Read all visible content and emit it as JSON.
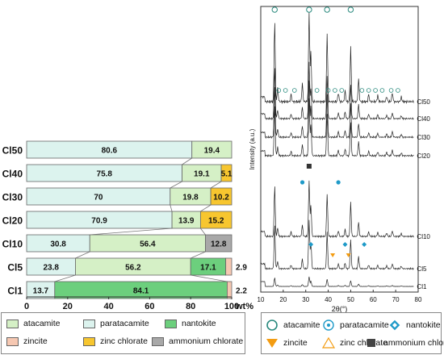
{
  "colors": {
    "atacamite": "#d5f0c6",
    "paratacamite": "#dcf3ee",
    "nantokite": "#6ccf7d",
    "zincite": "#f6c8b2",
    "zinc_chlorate": "#f7c62f",
    "ammonium_chlorate": "#a8a8a8",
    "marker_blue": "#1f9ac8",
    "marker_teal": "#2a8a7e",
    "marker_orange": "#f39c12"
  },
  "chart_data": [
    {
      "type": "bar",
      "orientation": "horizontal",
      "stacked": true,
      "categories": [
        "Cl50",
        "Cl40",
        "Cl30",
        "Cl20",
        "Cl10",
        "Cl5",
        "Cl1"
      ],
      "series": [
        {
          "name": "paratacamite",
          "values": [
            80.6,
            75.8,
            70,
            70.9,
            30.8,
            23.8,
            13.7
          ]
        },
        {
          "name": "atacamite",
          "values": [
            19.4,
            19.1,
            19.8,
            13.9,
            56.4,
            56.2,
            0
          ]
        },
        {
          "name": "nantokite",
          "values": [
            0,
            0,
            0,
            0,
            0,
            17.1,
            84.1
          ]
        },
        {
          "name": "zinc chlorate",
          "values": [
            0,
            5.1,
            10.2,
            15.2,
            0,
            0,
            0
          ]
        },
        {
          "name": "ammonium chlorate",
          "values": [
            0,
            0,
            0,
            0,
            12.8,
            0,
            0
          ]
        },
        {
          "name": "zincite",
          "values": [
            0,
            0,
            0,
            0,
            0,
            2.9,
            2.2
          ]
        }
      ],
      "labels": [
        [
          "80.6",
          "19.4"
        ],
        [
          "75.8",
          "19.1",
          "5.1"
        ],
        [
          "70",
          "19.8",
          "10.2"
        ],
        [
          "70.9",
          "13.9",
          "15.2"
        ],
        [
          "30.8",
          "56.4",
          "12.8"
        ],
        [
          "23.8",
          "56.2",
          "17.1",
          "2.9"
        ],
        [
          "13.7",
          "84.1",
          "2.2"
        ]
      ],
      "xlim": [
        0,
        100
      ],
      "xticks": [
        "0",
        "20",
        "40",
        "60",
        "80",
        "100"
      ],
      "xunit": "wt%",
      "legend": [
        [
          "atacamite",
          "paratacamite",
          "nantokite"
        ],
        [
          "zincite",
          "zinc chlorate",
          "ammonium chlorate"
        ]
      ]
    },
    {
      "type": "line",
      "xlabel": "2θ(°)",
      "ylabel": "Intensity (a.u.)",
      "xlim": [
        10,
        80
      ],
      "xticks": [
        "10",
        "20",
        "30",
        "40",
        "50",
        "60",
        "70",
        "80"
      ],
      "series_names": [
        "Cl50",
        "Cl40",
        "Cl30",
        "Cl20",
        "Cl10",
        "Cl5",
        "Cl1"
      ],
      "peaks": [
        {
          "x": 16.2,
          "h": 0.9
        },
        {
          "x": 17.5,
          "h": 0.15
        },
        {
          "x": 23.5,
          "h": 0.08
        },
        {
          "x": 28.5,
          "h": 0.2
        },
        {
          "x": 31.5,
          "h": 1.0
        },
        {
          "x": 32.3,
          "h": 0.55
        },
        {
          "x": 39.5,
          "h": 0.75
        },
        {
          "x": 44.5,
          "h": 0.1
        },
        {
          "x": 47.5,
          "h": 0.12
        },
        {
          "x": 50.0,
          "h": 0.6
        },
        {
          "x": 53.5,
          "h": 0.25
        },
        {
          "x": 58.0,
          "h": 0.08
        },
        {
          "x": 62.0,
          "h": 0.07
        },
        {
          "x": 66.0,
          "h": 0.06
        },
        {
          "x": 68.5,
          "h": 0.1
        },
        {
          "x": 72.5,
          "h": 0.05
        }
      ],
      "legend": [
        [
          "atacamite",
          "paratacamite",
          "nantokite"
        ],
        [
          "zincite",
          "zinc chlorate",
          "ammonium chlorate"
        ]
      ]
    }
  ]
}
